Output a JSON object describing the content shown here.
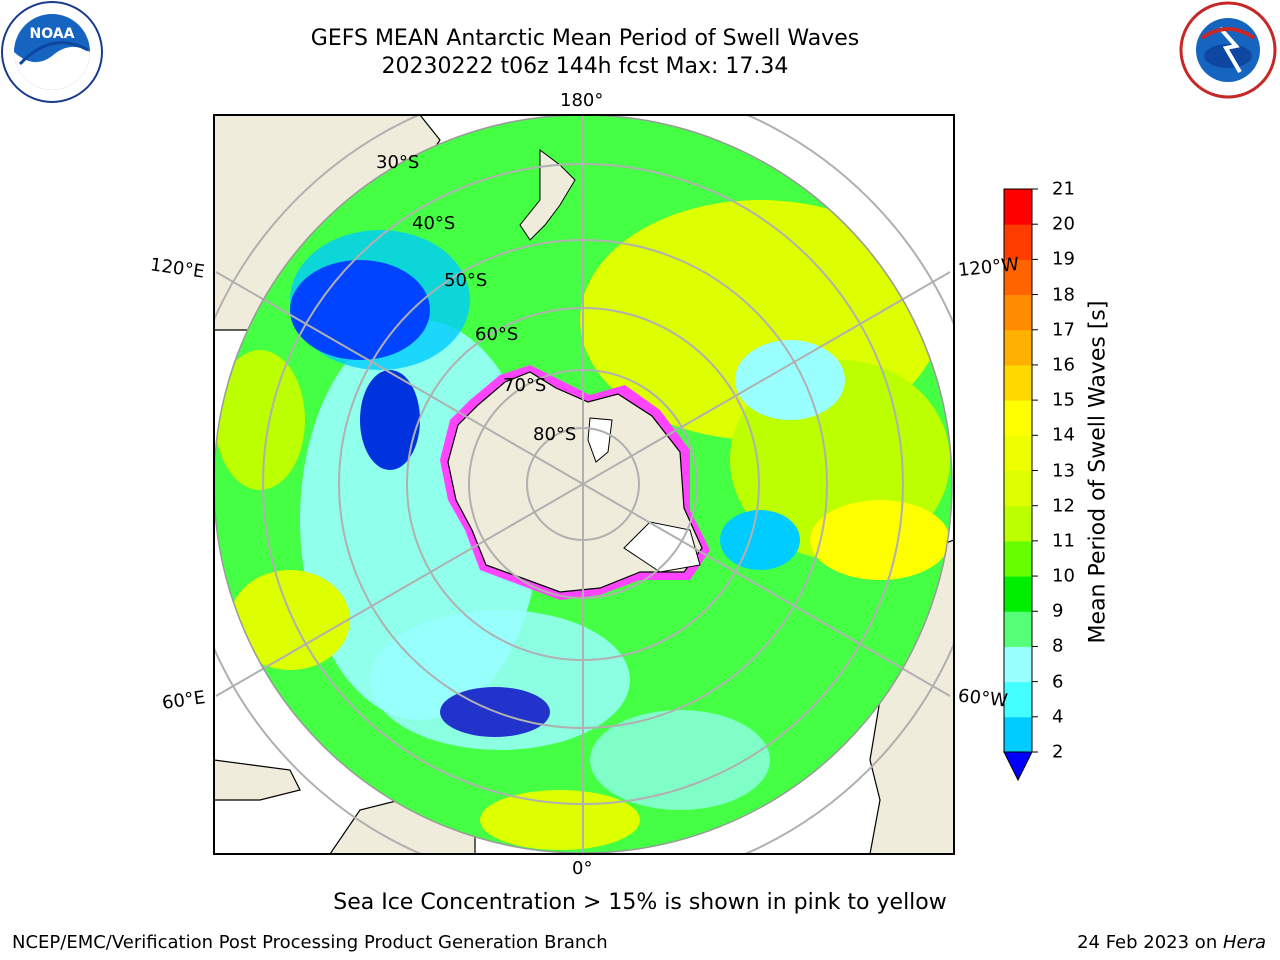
{
  "header": {
    "title": "GEFS MEAN Antarctic Mean Period of Swell Waves",
    "subtitle": "20230222 t06z 144h fcst   Max: 17.34"
  },
  "logos": {
    "left": "NOAA",
    "left_ring": "NATIONAL OCEANIC AND ATMOSPHERIC ADMINISTRATION · U.S. DEPARTMENT OF COMMERCE",
    "right_ring": "NATIONAL WEATHER SERVICE"
  },
  "map": {
    "longitude_labels": {
      "top": "180°",
      "bottom": "0°",
      "left_upper": "120°E",
      "left_lower": "60°E",
      "right_upper": "120°W",
      "right_lower": "60°W"
    },
    "latitude_labels": [
      "30°S",
      "40°S",
      "50°S",
      "60°S",
      "70°S",
      "80°S"
    ],
    "colors": {
      "ocean_dominant": "#44ff44",
      "land": "#efecdb",
      "sea_ice_edge": "#ff44ff",
      "gridline": "#b0b0b0"
    }
  },
  "colorbar": {
    "title": "Mean Period of Swell Waves [s]",
    "ticks": [
      "2",
      "4",
      "6",
      "8",
      "9",
      "10",
      "11",
      "12",
      "13",
      "14",
      "15",
      "16",
      "17",
      "18",
      "19",
      "20",
      "21"
    ],
    "colors": [
      "#0044ff",
      "#00ccff",
      "#44ffff",
      "#99ffff",
      "#55ff77",
      "#00ee00",
      "#66ff00",
      "#bbff00",
      "#ddff00",
      "#eeff00",
      "#ffff00",
      "#ffd800",
      "#ffb000",
      "#ff8c00",
      "#ff6400",
      "#ff3c00",
      "#ff0000"
    ],
    "extend_color": "#0000ff"
  },
  "caption": "Sea Ice Concentration > 15% is shown in pink to yellow",
  "footer": {
    "left": "NCEP/EMC/Verification Post Processing Product Generation Branch",
    "right_date": "24 Feb 2023 on ",
    "right_host": "Hera"
  }
}
